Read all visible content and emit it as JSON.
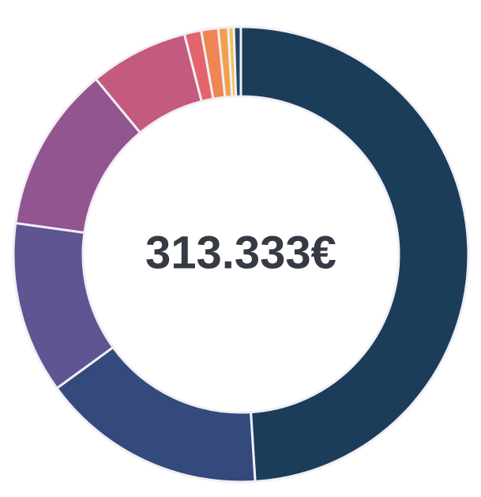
{
  "chart_data": {
    "type": "donut",
    "center_label": "313.333€",
    "values": [
      49,
      16,
      12.2,
      11.8,
      7,
      1.2,
      1.2,
      0.7,
      0.4,
      0.5
    ],
    "colors": [
      "#1b3d5a",
      "#344a7c",
      "#5e5592",
      "#92558f",
      "#c45a80",
      "#e3646c",
      "#ee8552",
      "#f2a04e",
      "#f3c255",
      "#244766"
    ]
  }
}
